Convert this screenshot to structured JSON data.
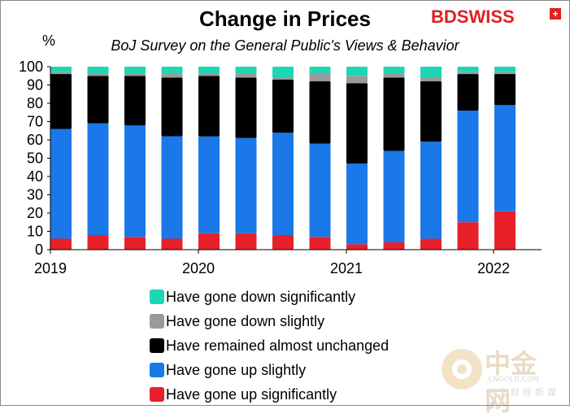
{
  "chart_data": {
    "type": "bar",
    "stacked": true,
    "title": "Change in Prices",
    "subtitle": "BoJ Survey on the General Public's Views & Behavior",
    "ylabel": "%",
    "ylim": [
      0,
      100
    ],
    "yticks": [
      0,
      10,
      20,
      30,
      40,
      50,
      60,
      70,
      80,
      90,
      100
    ],
    "xtick_labels": [
      "2019",
      "2020",
      "2021",
      "2022"
    ],
    "categories": [
      "2019 Q1",
      "2019 Q2",
      "2019 Q3",
      "2019 Q4",
      "2020 Q1",
      "2020 Q2",
      "2020 Q3",
      "2020 Q4",
      "2021 Q1",
      "2021 Q2",
      "2021 Q3",
      "2021 Q4",
      "2022 Q1"
    ],
    "series": [
      {
        "name": "Have gone up significantly",
        "color": "#e8202a",
        "values": [
          6,
          8,
          7,
          6,
          9,
          9,
          8,
          7,
          3,
          4,
          6,
          15,
          21
        ]
      },
      {
        "name": "Have gone up slightly",
        "color": "#1a78e8",
        "values": [
          60,
          61,
          61,
          56,
          53,
          52,
          56,
          51,
          44,
          50,
          53,
          61,
          58
        ]
      },
      {
        "name": "Have remained almost unchanged",
        "color": "#000000",
        "values": [
          30,
          26,
          27,
          32,
          33,
          33,
          29,
          34,
          44,
          40,
          33,
          20,
          17
        ]
      },
      {
        "name": "Have gone down slightly",
        "color": "#9a9a9a",
        "values": [
          1,
          1,
          1,
          2,
          1,
          2,
          1,
          4,
          4,
          2,
          2,
          1,
          1
        ]
      },
      {
        "name": "Have gone down significantly",
        "color": "#1fd6b4",
        "values": [
          3,
          4,
          4,
          4,
          4,
          4,
          6,
          4,
          5,
          4,
          6,
          3,
          3
        ]
      }
    ],
    "legend_order": [
      4,
      3,
      2,
      1,
      0
    ]
  },
  "brand": {
    "logo_text": "BDSWISS",
    "logo_badge": "+",
    "accent": "#e02020"
  },
  "watermark": {
    "main": "中金网",
    "sub": "CNGOLD.COM",
    "sub2": "中文财经新媒体"
  }
}
